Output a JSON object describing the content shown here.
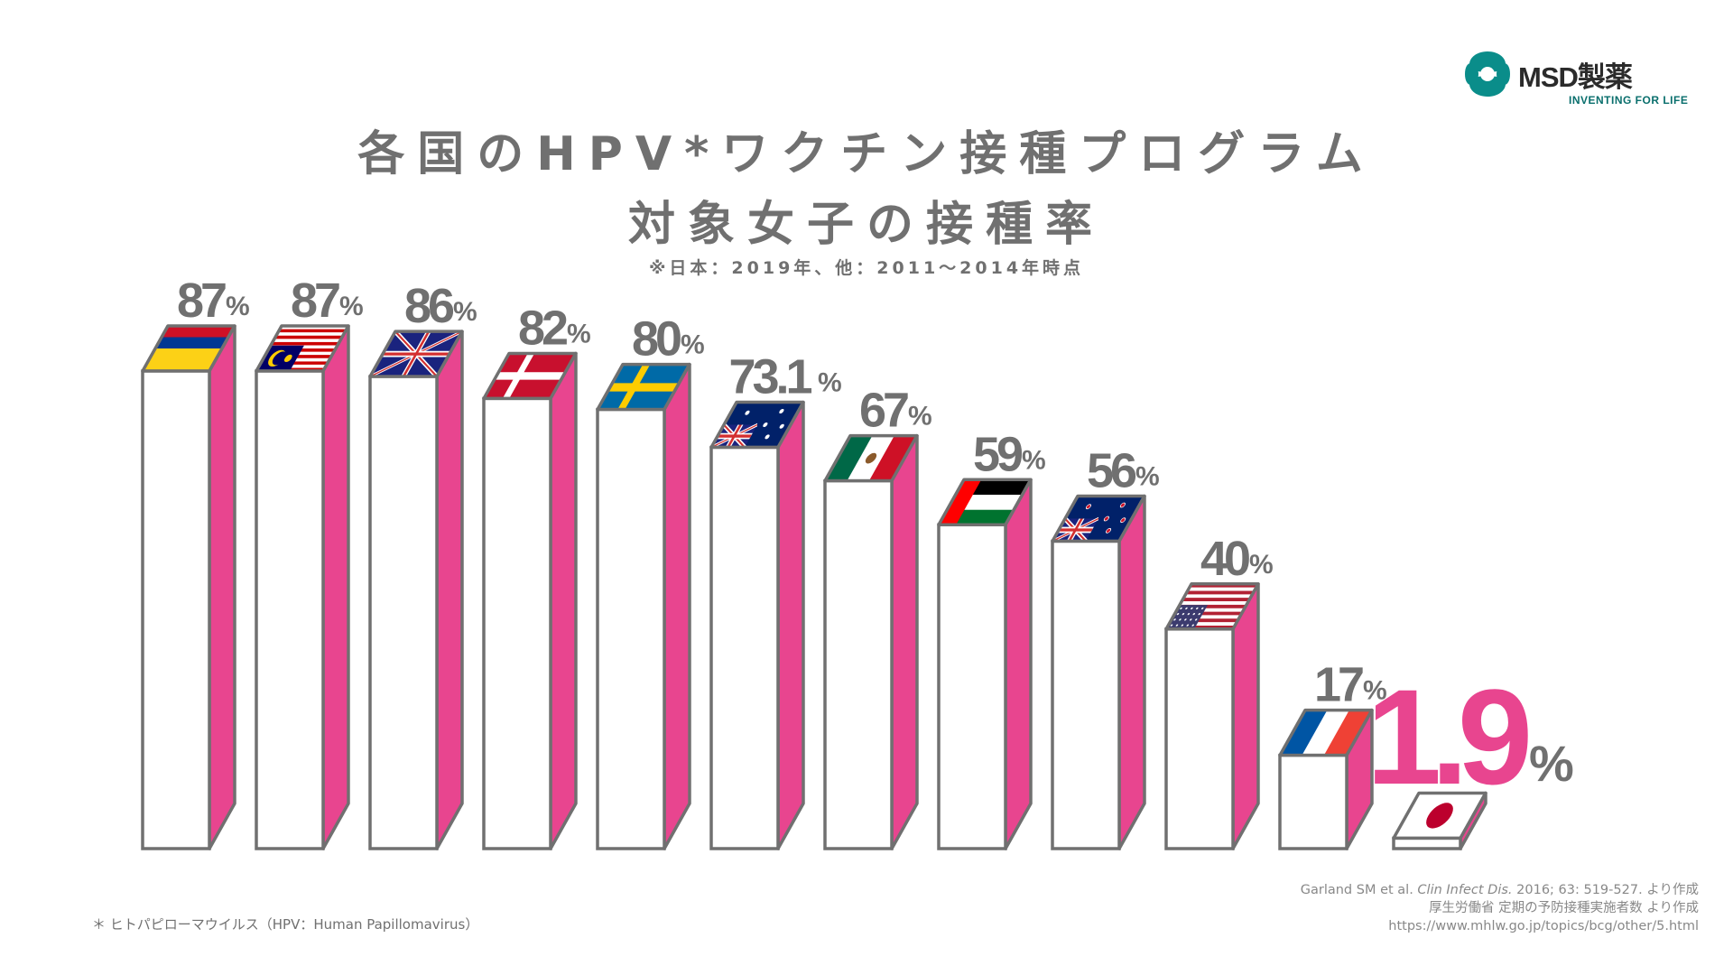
{
  "brand": {
    "name": "MSD製薬",
    "tagline": "INVENTING FOR LIFE",
    "colors": {
      "teal": "#0a8d8a",
      "dark": "#2b2b2b"
    }
  },
  "footnote": "＊ ヒトパピローマウイルス（HPV：Human Papillomavirus）",
  "source": {
    "line1_pre": "Garland SM et al. ",
    "line1_journal": "Clin Infect Dis.",
    "line1_post": " 2016; 63: 519-527. より作成",
    "line2": "厚生労働省 定期の予防接種実施者数 より作成",
    "line3": "https://www.mhlw.go.jp/topics/bcg/other/5.html"
  },
  "chart_data": {
    "type": "bar",
    "title_line1": "各国のHPV*ワクチン接種プログラム",
    "title_line2": "対象女子の接種率",
    "subtitle": "※日本：2019年、他：2011～2014年時点",
    "unit": "%",
    "ylim": [
      0,
      100
    ],
    "grid": false,
    "bar_colors": {
      "front": "#ffffff",
      "side": "#e8458f",
      "outline": "#707070",
      "highlight_label": "#e8458f"
    },
    "categories": [
      "colombia",
      "malaysia",
      "uk",
      "denmark",
      "sweden",
      "australia",
      "mexico",
      "uae",
      "new-zealand",
      "usa",
      "france",
      "japan"
    ],
    "flag_icons": [
      "colombia-flag-icon",
      "malaysia-flag-icon",
      "uk-flag-icon",
      "denmark-flag-icon",
      "sweden-flag-icon",
      "australia-flag-icon",
      "mexico-flag-icon",
      "uae-flag-icon",
      "new-zealand-flag-icon",
      "usa-flag-icon",
      "france-flag-icon",
      "japan-flag-icon"
    ],
    "values": [
      87,
      87,
      86,
      82,
      80,
      73.1,
      67,
      59,
      56,
      40,
      17,
      1.9
    ],
    "labels": [
      "87",
      "87",
      "86",
      "82",
      "80",
      "73.1",
      "67",
      "59",
      "56",
      "40",
      "17",
      "1.9"
    ],
    "highlight_index": 11
  }
}
